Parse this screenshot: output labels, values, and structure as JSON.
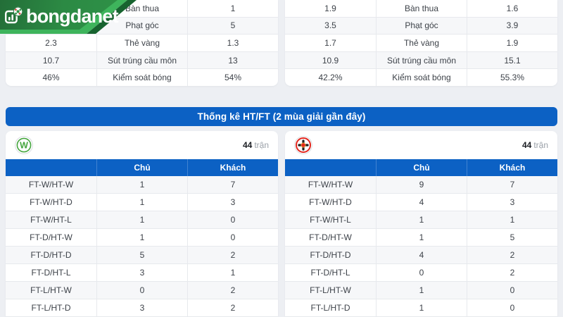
{
  "brand": {
    "name": "bongdanet"
  },
  "colors": {
    "primary_blue": "#0c61c4",
    "brand_green": "#2c8a44",
    "brand_green_light": "#3eb45c",
    "brand_green_dark": "#17632f",
    "stripe": "#f6f7f9",
    "page_bg": "#edeff3"
  },
  "top_stats": {
    "left": {
      "rows": [
        {
          "home": "",
          "label": "Bàn thua",
          "away": "1"
        },
        {
          "home": "",
          "label": "Phạt góc",
          "away": "5"
        },
        {
          "home": "2.3",
          "label": "Thẻ vàng",
          "away": "1.3"
        },
        {
          "home": "10.7",
          "label": "Sút trúng cầu môn",
          "away": "13"
        },
        {
          "home": "46%",
          "label": "Kiểm soát bóng",
          "away": "54%"
        }
      ]
    },
    "right": {
      "rows": [
        {
          "home": "1.9",
          "label": "Bàn thua",
          "away": "1.6"
        },
        {
          "home": "3.5",
          "label": "Phạt góc",
          "away": "3.9"
        },
        {
          "home": "1.7",
          "label": "Thẻ vàng",
          "away": "1.9"
        },
        {
          "home": "10.9",
          "label": "Sút trúng cầu môn",
          "away": "15.1"
        },
        {
          "home": "42.2%",
          "label": "Kiểm soát bóng",
          "away": "55.3%"
        }
      ]
    }
  },
  "htft": {
    "title": "Thống kê HT/FT (2 mùa giải gần đây)",
    "col_home": "Chủ",
    "col_away": "Khách",
    "left": {
      "team_logo": "wolfsburg-logo",
      "matches": "44",
      "matches_unit": "trận",
      "rows": [
        {
          "label": "FT-W/HT-W",
          "home": "1",
          "away": "7"
        },
        {
          "label": "FT-W/HT-D",
          "home": "1",
          "away": "3"
        },
        {
          "label": "FT-W/HT-L",
          "home": "1",
          "away": "0"
        },
        {
          "label": "FT-D/HT-W",
          "home": "1",
          "away": "0"
        },
        {
          "label": "FT-D/HT-D",
          "home": "5",
          "away": "2"
        },
        {
          "label": "FT-D/HT-L",
          "home": "3",
          "away": "1"
        },
        {
          "label": "FT-L/HT-W",
          "home": "0",
          "away": "2"
        },
        {
          "label": "FT-L/HT-D",
          "home": "3",
          "away": "2"
        }
      ]
    },
    "right": {
      "team_logo": "leverkusen-logo",
      "matches": "44",
      "matches_unit": "trận",
      "rows": [
        {
          "label": "FT-W/HT-W",
          "home": "9",
          "away": "7"
        },
        {
          "label": "FT-W/HT-D",
          "home": "4",
          "away": "3"
        },
        {
          "label": "FT-W/HT-L",
          "home": "1",
          "away": "1"
        },
        {
          "label": "FT-D/HT-W",
          "home": "1",
          "away": "5"
        },
        {
          "label": "FT-D/HT-D",
          "home": "4",
          "away": "2"
        },
        {
          "label": "FT-D/HT-L",
          "home": "0",
          "away": "2"
        },
        {
          "label": "FT-L/HT-W",
          "home": "1",
          "away": "0"
        },
        {
          "label": "FT-L/HT-D",
          "home": "1",
          "away": "0"
        }
      ]
    }
  }
}
